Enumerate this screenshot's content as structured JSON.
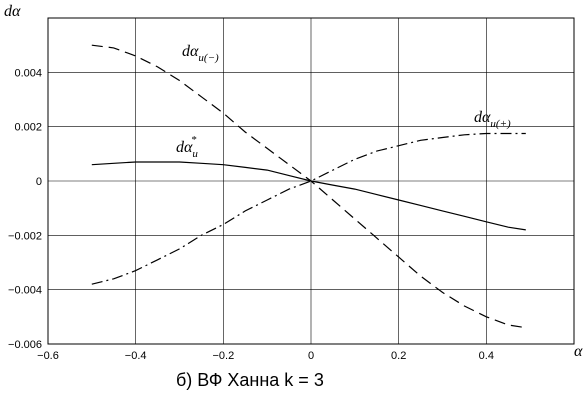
{
  "chart_data": {
    "type": "line",
    "ylabel": "dα",
    "xlabel": "α",
    "caption": "б) ВФ Ханна k = 3",
    "xlim": [
      -0.6,
      0.6
    ],
    "ylim": [
      -0.006,
      0.006
    ],
    "x_ticks": [
      -0.6,
      -0.4,
      -0.2,
      0,
      0.2,
      0.4
    ],
    "x_tick_labels": [
      "−0.6",
      "−0.4",
      "−0.2",
      "0",
      "0.2",
      "0.4"
    ],
    "y_ticks": [
      -0.006,
      -0.004,
      -0.002,
      0,
      0.002,
      0.004
    ],
    "y_tick_labels": [
      "−0.006",
      "−0.004",
      "−0.002",
      "0",
      "0.002",
      "0.004"
    ],
    "grid": true,
    "series": [
      {
        "name": "dα_и(−)",
        "label_main": "dα",
        "label_sub": "и(−)",
        "label_sup": "",
        "style": "dashed",
        "x": [
          -0.5,
          -0.45,
          -0.4,
          -0.35,
          -0.3,
          -0.25,
          -0.2,
          -0.15,
          -0.1,
          -0.05,
          0,
          0.05,
          0.1,
          0.15,
          0.2,
          0.25,
          0.3,
          0.35,
          0.4,
          0.45,
          0.49
        ],
        "y": [
          0.005,
          0.0049,
          0.0046,
          0.0042,
          0.0037,
          0.0031,
          0.0025,
          0.0018,
          0.0012,
          0.0006,
          0,
          -0.0007,
          -0.0014,
          -0.0021,
          -0.0028,
          -0.0035,
          -0.0041,
          -0.0046,
          -0.005,
          -0.0053,
          -0.0054
        ]
      },
      {
        "name": "dα_и(+)",
        "label_main": "dα",
        "label_sub": "и(+)",
        "label_sup": "",
        "style": "dashdot",
        "x": [
          -0.5,
          -0.45,
          -0.4,
          -0.35,
          -0.3,
          -0.25,
          -0.2,
          -0.15,
          -0.1,
          -0.05,
          0,
          0.05,
          0.1,
          0.15,
          0.2,
          0.25,
          0.3,
          0.35,
          0.4,
          0.45,
          0.49
        ],
        "y": [
          -0.0038,
          -0.0036,
          -0.0033,
          -0.0029,
          -0.0025,
          -0.002,
          -0.0016,
          -0.0011,
          -0.0007,
          -0.0003,
          0,
          0.0004,
          0.0008,
          0.0011,
          0.0013,
          0.0015,
          0.0016,
          0.0017,
          0.00175,
          0.00175,
          0.00175
        ]
      },
      {
        "name": "dα_и*",
        "label_main": "dα",
        "label_sub": "и",
        "label_sup": "*",
        "style": "solid",
        "x": [
          -0.5,
          -0.45,
          -0.4,
          -0.35,
          -0.3,
          -0.25,
          -0.2,
          -0.15,
          -0.1,
          -0.05,
          0,
          0.05,
          0.1,
          0.15,
          0.2,
          0.25,
          0.3,
          0.35,
          0.4,
          0.45,
          0.49
        ],
        "y": [
          0.0006,
          0.00065,
          0.0007,
          0.0007,
          0.0007,
          0.00065,
          0.0006,
          0.0005,
          0.0004,
          0.0002,
          0,
          -0.00015,
          -0.0003,
          -0.0005,
          -0.0007,
          -0.0009,
          -0.0011,
          -0.0013,
          -0.0015,
          -0.0017,
          -0.0018
        ]
      }
    ]
  }
}
